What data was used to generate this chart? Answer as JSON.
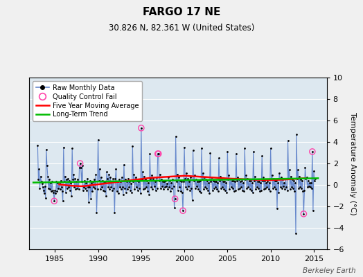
{
  "title": "FARGO 17 NE",
  "subtitle": "30.826 N, 82.361 W (United States)",
  "ylabel": "Temperature Anomaly (°C)",
  "watermark": "Berkeley Earth",
  "xlim": [
    1982.0,
    2016.5
  ],
  "ylim": [
    -6,
    10
  ],
  "yticks": [
    -6,
    -4,
    -2,
    0,
    2,
    4,
    6,
    8,
    10
  ],
  "xticks": [
    1985,
    1990,
    1995,
    2000,
    2005,
    2010,
    2015
  ],
  "bg_color": "#f0f0f0",
  "plot_bg_color": "#dde8f0",
  "grid_color": "#ffffff",
  "raw_line_color": "#6688cc",
  "raw_dot_color": "#000000",
  "qc_fail_color": "#ff44aa",
  "moving_avg_color": "#ff0000",
  "trend_color": "#00bb00",
  "raw_data": [
    [
      1983.0,
      3.7
    ],
    [
      1983.083,
      0.5
    ],
    [
      1983.167,
      1.5
    ],
    [
      1983.25,
      -0.3
    ],
    [
      1983.333,
      0.8
    ],
    [
      1983.417,
      0.3
    ],
    [
      1983.5,
      0.1
    ],
    [
      1983.583,
      -0.2
    ],
    [
      1983.667,
      -0.5
    ],
    [
      1983.75,
      -0.8
    ],
    [
      1983.833,
      -0.1
    ],
    [
      1983.917,
      -1.2
    ],
    [
      1984.0,
      3.3
    ],
    [
      1984.083,
      1.8
    ],
    [
      1984.167,
      0.8
    ],
    [
      1984.25,
      -0.3
    ],
    [
      1984.333,
      0.5
    ],
    [
      1984.417,
      -0.4
    ],
    [
      1984.5,
      0.2
    ],
    [
      1984.583,
      -0.6
    ],
    [
      1984.667,
      0.3
    ],
    [
      1984.75,
      -0.5
    ],
    [
      1984.833,
      -0.7
    ],
    [
      1984.917,
      -1.5
    ],
    [
      1985.0,
      -0.5
    ],
    [
      1985.083,
      -0.8
    ],
    [
      1985.167,
      0.3
    ],
    [
      1985.25,
      -0.6
    ],
    [
      1985.333,
      0.2
    ],
    [
      1985.417,
      -0.3
    ],
    [
      1985.5,
      0.1
    ],
    [
      1985.583,
      -0.4
    ],
    [
      1985.667,
      0.4
    ],
    [
      1985.75,
      -0.2
    ],
    [
      1985.833,
      -0.6
    ],
    [
      1985.917,
      -1.5
    ],
    [
      1986.0,
      3.5
    ],
    [
      1986.083,
      0.3
    ],
    [
      1986.167,
      0.8
    ],
    [
      1986.25,
      -0.7
    ],
    [
      1986.333,
      0.5
    ],
    [
      1986.417,
      -0.3
    ],
    [
      1986.5,
      0.6
    ],
    [
      1986.583,
      -0.2
    ],
    [
      1986.667,
      0.4
    ],
    [
      1986.75,
      -0.5
    ],
    [
      1986.833,
      0.2
    ],
    [
      1986.917,
      -1.0
    ],
    [
      1987.0,
      3.4
    ],
    [
      1987.083,
      0.5
    ],
    [
      1987.167,
      1.0
    ],
    [
      1987.25,
      -0.2
    ],
    [
      1987.333,
      0.6
    ],
    [
      1987.417,
      -0.4
    ],
    [
      1987.5,
      0.3
    ],
    [
      1987.583,
      -0.3
    ],
    [
      1987.667,
      0.5
    ],
    [
      1987.75,
      -0.4
    ],
    [
      1987.833,
      1.6
    ],
    [
      1987.917,
      2.0
    ],
    [
      1988.0,
      1.6
    ],
    [
      1988.083,
      0.3
    ],
    [
      1988.167,
      1.8
    ],
    [
      1988.25,
      -0.5
    ],
    [
      1988.333,
      -0.2
    ],
    [
      1988.417,
      0.4
    ],
    [
      1988.5,
      -0.3
    ],
    [
      1988.583,
      0.2
    ],
    [
      1988.667,
      -0.5
    ],
    [
      1988.75,
      0.6
    ],
    [
      1988.833,
      -0.2
    ],
    [
      1988.917,
      -1.6
    ],
    [
      1989.0,
      -0.2
    ],
    [
      1989.083,
      0.4
    ],
    [
      1989.167,
      -1.3
    ],
    [
      1989.25,
      0.2
    ],
    [
      1989.333,
      -0.6
    ],
    [
      1989.417,
      0.3
    ],
    [
      1989.5,
      -0.2
    ],
    [
      1989.583,
      0.5
    ],
    [
      1989.667,
      -0.3
    ],
    [
      1989.75,
      1.0
    ],
    [
      1989.833,
      -2.6
    ],
    [
      1989.917,
      -0.4
    ],
    [
      1990.0,
      4.2
    ],
    [
      1990.083,
      0.4
    ],
    [
      1990.167,
      1.5
    ],
    [
      1990.25,
      -0.4
    ],
    [
      1990.333,
      0.7
    ],
    [
      1990.417,
      -0.2
    ],
    [
      1990.5,
      0.4
    ],
    [
      1990.583,
      -0.5
    ],
    [
      1990.667,
      0.3
    ],
    [
      1990.75,
      -0.6
    ],
    [
      1990.833,
      0.3
    ],
    [
      1990.917,
      -1.0
    ],
    [
      1991.0,
      1.2
    ],
    [
      1991.083,
      0.6
    ],
    [
      1991.167,
      -0.2
    ],
    [
      1991.25,
      1.0
    ],
    [
      1991.333,
      -0.4
    ],
    [
      1991.417,
      0.7
    ],
    [
      1991.5,
      -0.2
    ],
    [
      1991.583,
      0.3
    ],
    [
      1991.667,
      -0.5
    ],
    [
      1991.75,
      0.6
    ],
    [
      1991.833,
      -0.3
    ],
    [
      1991.917,
      -2.6
    ],
    [
      1992.0,
      0.6
    ],
    [
      1992.083,
      1.5
    ],
    [
      1992.167,
      -0.6
    ],
    [
      1992.25,
      0.3
    ],
    [
      1992.333,
      -0.8
    ],
    [
      1992.417,
      0.5
    ],
    [
      1992.5,
      -0.2
    ],
    [
      1992.583,
      0.3
    ],
    [
      1992.667,
      -0.4
    ],
    [
      1992.75,
      0.7
    ],
    [
      1992.833,
      -0.2
    ],
    [
      1992.917,
      -0.9
    ],
    [
      1993.0,
      1.9
    ],
    [
      1993.083,
      -0.3
    ],
    [
      1993.167,
      0.5
    ],
    [
      1993.25,
      -0.7
    ],
    [
      1993.333,
      0.3
    ],
    [
      1993.417,
      -0.4
    ],
    [
      1993.5,
      0.6
    ],
    [
      1993.583,
      -0.2
    ],
    [
      1993.667,
      0.3
    ],
    [
      1993.75,
      -0.5
    ],
    [
      1993.833,
      0.1
    ],
    [
      1993.917,
      -0.7
    ],
    [
      1994.0,
      3.6
    ],
    [
      1994.083,
      0.3
    ],
    [
      1994.167,
      1.0
    ],
    [
      1994.25,
      -0.4
    ],
    [
      1994.333,
      0.7
    ],
    [
      1994.417,
      -0.2
    ],
    [
      1994.5,
      0.4
    ],
    [
      1994.583,
      -0.5
    ],
    [
      1994.667,
      0.3
    ],
    [
      1994.75,
      -0.3
    ],
    [
      1994.833,
      0.5
    ],
    [
      1994.917,
      -0.8
    ],
    [
      1995.0,
      5.3
    ],
    [
      1995.083,
      0.5
    ],
    [
      1995.167,
      1.2
    ],
    [
      1995.25,
      -0.4
    ],
    [
      1995.333,
      0.8
    ],
    [
      1995.417,
      -0.3
    ],
    [
      1995.5,
      0.5
    ],
    [
      1995.583,
      -0.2
    ],
    [
      1995.667,
      0.4
    ],
    [
      1995.75,
      -0.6
    ],
    [
      1995.833,
      0.2
    ],
    [
      1995.917,
      -0.9
    ],
    [
      1996.0,
      2.9
    ],
    [
      1996.083,
      0.6
    ],
    [
      1996.167,
      -0.2
    ],
    [
      1996.25,
      0.9
    ],
    [
      1996.333,
      -0.4
    ],
    [
      1996.417,
      0.6
    ],
    [
      1996.5,
      -0.1
    ],
    [
      1996.583,
      0.3
    ],
    [
      1996.667,
      -0.5
    ],
    [
      1996.75,
      0.7
    ],
    [
      1996.833,
      -0.3
    ],
    [
      1996.917,
      2.9
    ],
    [
      1997.0,
      2.9
    ],
    [
      1997.083,
      0.4
    ],
    [
      1997.167,
      1.0
    ],
    [
      1997.25,
      -0.3
    ],
    [
      1997.333,
      0.5
    ],
    [
      1997.417,
      -0.1
    ],
    [
      1997.5,
      0.3
    ],
    [
      1997.583,
      -0.4
    ],
    [
      1997.667,
      0.3
    ],
    [
      1997.75,
      -0.2
    ],
    [
      1997.833,
      0.4
    ],
    [
      1997.917,
      -0.1
    ],
    [
      1998.0,
      0.1
    ],
    [
      1998.083,
      -0.4
    ],
    [
      1998.167,
      0.7
    ],
    [
      1998.25,
      -0.2
    ],
    [
      1998.333,
      0.4
    ],
    [
      1998.417,
      -0.6
    ],
    [
      1998.5,
      0.2
    ],
    [
      1998.583,
      -0.3
    ],
    [
      1998.667,
      0.5
    ],
    [
      1998.75,
      -0.1
    ],
    [
      1998.833,
      -2.1
    ],
    [
      1998.917,
      -1.3
    ],
    [
      1999.0,
      4.5
    ],
    [
      1999.083,
      0.3
    ],
    [
      1999.167,
      1.0
    ],
    [
      1999.25,
      -0.5
    ],
    [
      1999.333,
      0.7
    ],
    [
      1999.417,
      -0.2
    ],
    [
      1999.5,
      0.4
    ],
    [
      1999.583,
      -0.6
    ],
    [
      1999.667,
      0.3
    ],
    [
      1999.75,
      -0.7
    ],
    [
      1999.833,
      -2.4
    ],
    [
      1999.917,
      0.3
    ],
    [
      2000.0,
      3.5
    ],
    [
      2000.083,
      0.6
    ],
    [
      2000.167,
      -0.2
    ],
    [
      2000.25,
      1.1
    ],
    [
      2000.333,
      -0.4
    ],
    [
      2000.417,
      0.6
    ],
    [
      2000.5,
      -0.1
    ],
    [
      2000.583,
      0.3
    ],
    [
      2000.667,
      -0.5
    ],
    [
      2000.75,
      0.7
    ],
    [
      2000.833,
      -0.3
    ],
    [
      2000.917,
      -1.4
    ],
    [
      2001.0,
      3.2
    ],
    [
      2001.083,
      0.4
    ],
    [
      2001.167,
      0.9
    ],
    [
      2001.25,
      -0.3
    ],
    [
      2001.333,
      0.5
    ],
    [
      2001.417,
      -0.1
    ],
    [
      2001.5,
      0.3
    ],
    [
      2001.583,
      -0.4
    ],
    [
      2001.667,
      0.3
    ],
    [
      2001.75,
      -0.6
    ],
    [
      2001.833,
      0.4
    ],
    [
      2001.917,
      -0.7
    ],
    [
      2002.0,
      3.4
    ],
    [
      2002.083,
      0.5
    ],
    [
      2002.167,
      1.1
    ],
    [
      2002.25,
      -0.4
    ],
    [
      2002.333,
      0.7
    ],
    [
      2002.417,
      -0.2
    ],
    [
      2002.5,
      0.5
    ],
    [
      2002.583,
      -0.3
    ],
    [
      2002.667,
      0.4
    ],
    [
      2002.75,
      -0.5
    ],
    [
      2002.833,
      0.2
    ],
    [
      2002.917,
      -0.8
    ],
    [
      2003.0,
      3.0
    ],
    [
      2003.083,
      0.3
    ],
    [
      2003.167,
      0.7
    ],
    [
      2003.25,
      -0.5
    ],
    [
      2003.333,
      0.4
    ],
    [
      2003.417,
      -0.3
    ],
    [
      2003.5,
      0.3
    ],
    [
      2003.583,
      -0.2
    ],
    [
      2003.667,
      0.3
    ],
    [
      2003.75,
      -0.4
    ],
    [
      2003.833,
      0.2
    ],
    [
      2003.917,
      -0.6
    ],
    [
      2004.0,
      2.5
    ],
    [
      2004.083,
      0.4
    ],
    [
      2004.167,
      0.8
    ],
    [
      2004.25,
      -0.3
    ],
    [
      2004.333,
      0.5
    ],
    [
      2004.417,
      -0.2
    ],
    [
      2004.5,
      0.3
    ],
    [
      2004.583,
      -0.4
    ],
    [
      2004.667,
      0.3
    ],
    [
      2004.75,
      -0.5
    ],
    [
      2004.833,
      0.2
    ],
    [
      2004.917,
      -0.7
    ],
    [
      2005.0,
      3.1
    ],
    [
      2005.083,
      0.5
    ],
    [
      2005.167,
      0.9
    ],
    [
      2005.25,
      -0.4
    ],
    [
      2005.333,
      0.6
    ],
    [
      2005.417,
      -0.2
    ],
    [
      2005.5,
      0.4
    ],
    [
      2005.583,
      -0.3
    ],
    [
      2005.667,
      0.4
    ],
    [
      2005.75,
      -0.6
    ],
    [
      2005.833,
      0.3
    ],
    [
      2005.917,
      -0.5
    ],
    [
      2006.0,
      2.9
    ],
    [
      2006.083,
      0.4
    ],
    [
      2006.167,
      0.7
    ],
    [
      2006.25,
      -0.4
    ],
    [
      2006.333,
      0.5
    ],
    [
      2006.417,
      -0.3
    ],
    [
      2006.5,
      0.3
    ],
    [
      2006.583,
      -0.2
    ],
    [
      2006.667,
      0.4
    ],
    [
      2006.75,
      -0.5
    ],
    [
      2006.833,
      0.2
    ],
    [
      2006.917,
      -0.6
    ],
    [
      2007.0,
      3.4
    ],
    [
      2007.083,
      0.5
    ],
    [
      2007.167,
      0.9
    ],
    [
      2007.25,
      -0.3
    ],
    [
      2007.333,
      0.6
    ],
    [
      2007.417,
      -0.2
    ],
    [
      2007.5,
      0.4
    ],
    [
      2007.583,
      -0.4
    ],
    [
      2007.667,
      0.4
    ],
    [
      2007.75,
      -0.5
    ],
    [
      2007.833,
      0.2
    ],
    [
      2007.917,
      -0.7
    ],
    [
      2008.0,
      3.1
    ],
    [
      2008.083,
      0.4
    ],
    [
      2008.167,
      0.8
    ],
    [
      2008.25,
      -0.4
    ],
    [
      2008.333,
      0.5
    ],
    [
      2008.417,
      -0.2
    ],
    [
      2008.5,
      0.3
    ],
    [
      2008.583,
      -0.3
    ],
    [
      2008.667,
      0.3
    ],
    [
      2008.75,
      -0.6
    ],
    [
      2008.833,
      0.2
    ],
    [
      2008.917,
      -0.5
    ],
    [
      2009.0,
      2.7
    ],
    [
      2009.083,
      0.4
    ],
    [
      2009.167,
      0.7
    ],
    [
      2009.25,
      -0.4
    ],
    [
      2009.333,
      0.4
    ],
    [
      2009.417,
      -0.3
    ],
    [
      2009.5,
      0.2
    ],
    [
      2009.583,
      -0.2
    ],
    [
      2009.667,
      0.3
    ],
    [
      2009.75,
      -0.4
    ],
    [
      2009.833,
      0.2
    ],
    [
      2009.917,
      -0.6
    ],
    [
      2010.0,
      3.4
    ],
    [
      2010.083,
      0.5
    ],
    [
      2010.167,
      0.9
    ],
    [
      2010.25,
      -0.3
    ],
    [
      2010.333,
      0.6
    ],
    [
      2010.417,
      -0.2
    ],
    [
      2010.5,
      0.4
    ],
    [
      2010.583,
      -0.4
    ],
    [
      2010.667,
      0.4
    ],
    [
      2010.75,
      -2.2
    ],
    [
      2010.833,
      0.2
    ],
    [
      2010.917,
      -0.7
    ],
    [
      2011.0,
      1.1
    ],
    [
      2011.083,
      0.6
    ],
    [
      2011.167,
      -0.2
    ],
    [
      2011.25,
      0.7
    ],
    [
      2011.333,
      -0.3
    ],
    [
      2011.417,
      0.5
    ],
    [
      2011.5,
      -0.1
    ],
    [
      2011.583,
      0.2
    ],
    [
      2011.667,
      -0.4
    ],
    [
      2011.75,
      0.6
    ],
    [
      2011.833,
      -0.2
    ],
    [
      2011.917,
      -0.5
    ],
    [
      2012.0,
      4.1
    ],
    [
      2012.083,
      0.6
    ],
    [
      2012.167,
      1.4
    ],
    [
      2012.25,
      -0.4
    ],
    [
      2012.333,
      0.8
    ],
    [
      2012.417,
      -0.2
    ],
    [
      2012.5,
      0.5
    ],
    [
      2012.583,
      -0.3
    ],
    [
      2012.667,
      0.4
    ],
    [
      2012.75,
      -0.6
    ],
    [
      2012.833,
      0.2
    ],
    [
      2012.917,
      -4.5
    ],
    [
      2013.0,
      4.7
    ],
    [
      2013.083,
      0.6
    ],
    [
      2013.167,
      1.4
    ],
    [
      2013.25,
      -0.3
    ],
    [
      2013.333,
      0.8
    ],
    [
      2013.417,
      -0.2
    ],
    [
      2013.5,
      0.5
    ],
    [
      2013.583,
      -0.3
    ],
    [
      2013.667,
      0.4
    ],
    [
      2013.75,
      -0.6
    ],
    [
      2013.833,
      -2.7
    ],
    [
      2013.917,
      -0.5
    ],
    [
      2014.0,
      1.6
    ],
    [
      2014.083,
      0.6
    ],
    [
      2014.167,
      0.7
    ],
    [
      2014.25,
      -0.2
    ],
    [
      2014.333,
      0.4
    ],
    [
      2014.417,
      -0.1
    ],
    [
      2014.5,
      0.2
    ],
    [
      2014.583,
      -0.2
    ],
    [
      2014.667,
      0.2
    ],
    [
      2014.75,
      -0.3
    ],
    [
      2014.833,
      3.1
    ],
    [
      2014.917,
      -2.4
    ],
    [
      2015.0,
      1.3
    ],
    [
      2015.083,
      0.4
    ],
    [
      2015.167,
      0.6
    ]
  ],
  "qc_fail_points": [
    [
      1984.917,
      -1.5
    ],
    [
      1987.917,
      2.0
    ],
    [
      1995.0,
      5.3
    ],
    [
      1996.917,
      2.9
    ],
    [
      1997.0,
      2.9
    ],
    [
      1998.917,
      -1.3
    ],
    [
      1999.833,
      -2.4
    ],
    [
      2013.833,
      -2.7
    ],
    [
      2014.833,
      3.1
    ]
  ],
  "moving_avg": [
    [
      1985.5,
      0.05
    ],
    [
      1986.0,
      0.0
    ],
    [
      1986.5,
      -0.05
    ],
    [
      1987.0,
      -0.08
    ],
    [
      1987.5,
      -0.1
    ],
    [
      1988.0,
      -0.12
    ],
    [
      1988.5,
      -0.1
    ],
    [
      1989.0,
      -0.05
    ],
    [
      1989.5,
      0.0
    ],
    [
      1990.0,
      0.05
    ],
    [
      1990.5,
      0.1
    ],
    [
      1991.0,
      0.15
    ],
    [
      1991.5,
      0.2
    ],
    [
      1992.0,
      0.25
    ],
    [
      1992.5,
      0.3
    ],
    [
      1993.0,
      0.35
    ],
    [
      1993.5,
      0.4
    ],
    [
      1994.0,
      0.45
    ],
    [
      1994.5,
      0.5
    ],
    [
      1995.0,
      0.55
    ],
    [
      1995.5,
      0.6
    ],
    [
      1996.0,
      0.65
    ],
    [
      1996.5,
      0.68
    ],
    [
      1997.0,
      0.7
    ],
    [
      1997.5,
      0.73
    ],
    [
      1998.0,
      0.75
    ],
    [
      1998.5,
      0.78
    ],
    [
      1999.0,
      0.8
    ],
    [
      1999.5,
      0.82
    ],
    [
      2000.0,
      0.85
    ],
    [
      2000.5,
      0.83
    ],
    [
      2001.0,
      0.8
    ],
    [
      2001.5,
      0.78
    ],
    [
      2002.0,
      0.75
    ],
    [
      2002.5,
      0.73
    ],
    [
      2003.0,
      0.7
    ],
    [
      2003.5,
      0.68
    ],
    [
      2004.0,
      0.65
    ],
    [
      2004.5,
      0.63
    ],
    [
      2005.0,
      0.6
    ],
    [
      2005.5,
      0.58
    ],
    [
      2006.0,
      0.57
    ],
    [
      2006.5,
      0.55
    ],
    [
      2007.0,
      0.53
    ],
    [
      2007.5,
      0.52
    ],
    [
      2008.0,
      0.5
    ],
    [
      2008.5,
      0.48
    ],
    [
      2009.0,
      0.47
    ],
    [
      2009.5,
      0.45
    ],
    [
      2010.0,
      0.45
    ],
    [
      2010.5,
      0.47
    ],
    [
      2011.0,
      0.48
    ],
    [
      2011.5,
      0.5
    ],
    [
      2012.0,
      0.52
    ],
    [
      2012.5,
      0.55
    ],
    [
      2013.0,
      0.57
    ],
    [
      2013.5,
      0.6
    ],
    [
      2014.0,
      0.62
    ]
  ],
  "trend_x": [
    1982.5,
    2015.5
  ],
  "trend_y": [
    0.22,
    0.62
  ]
}
